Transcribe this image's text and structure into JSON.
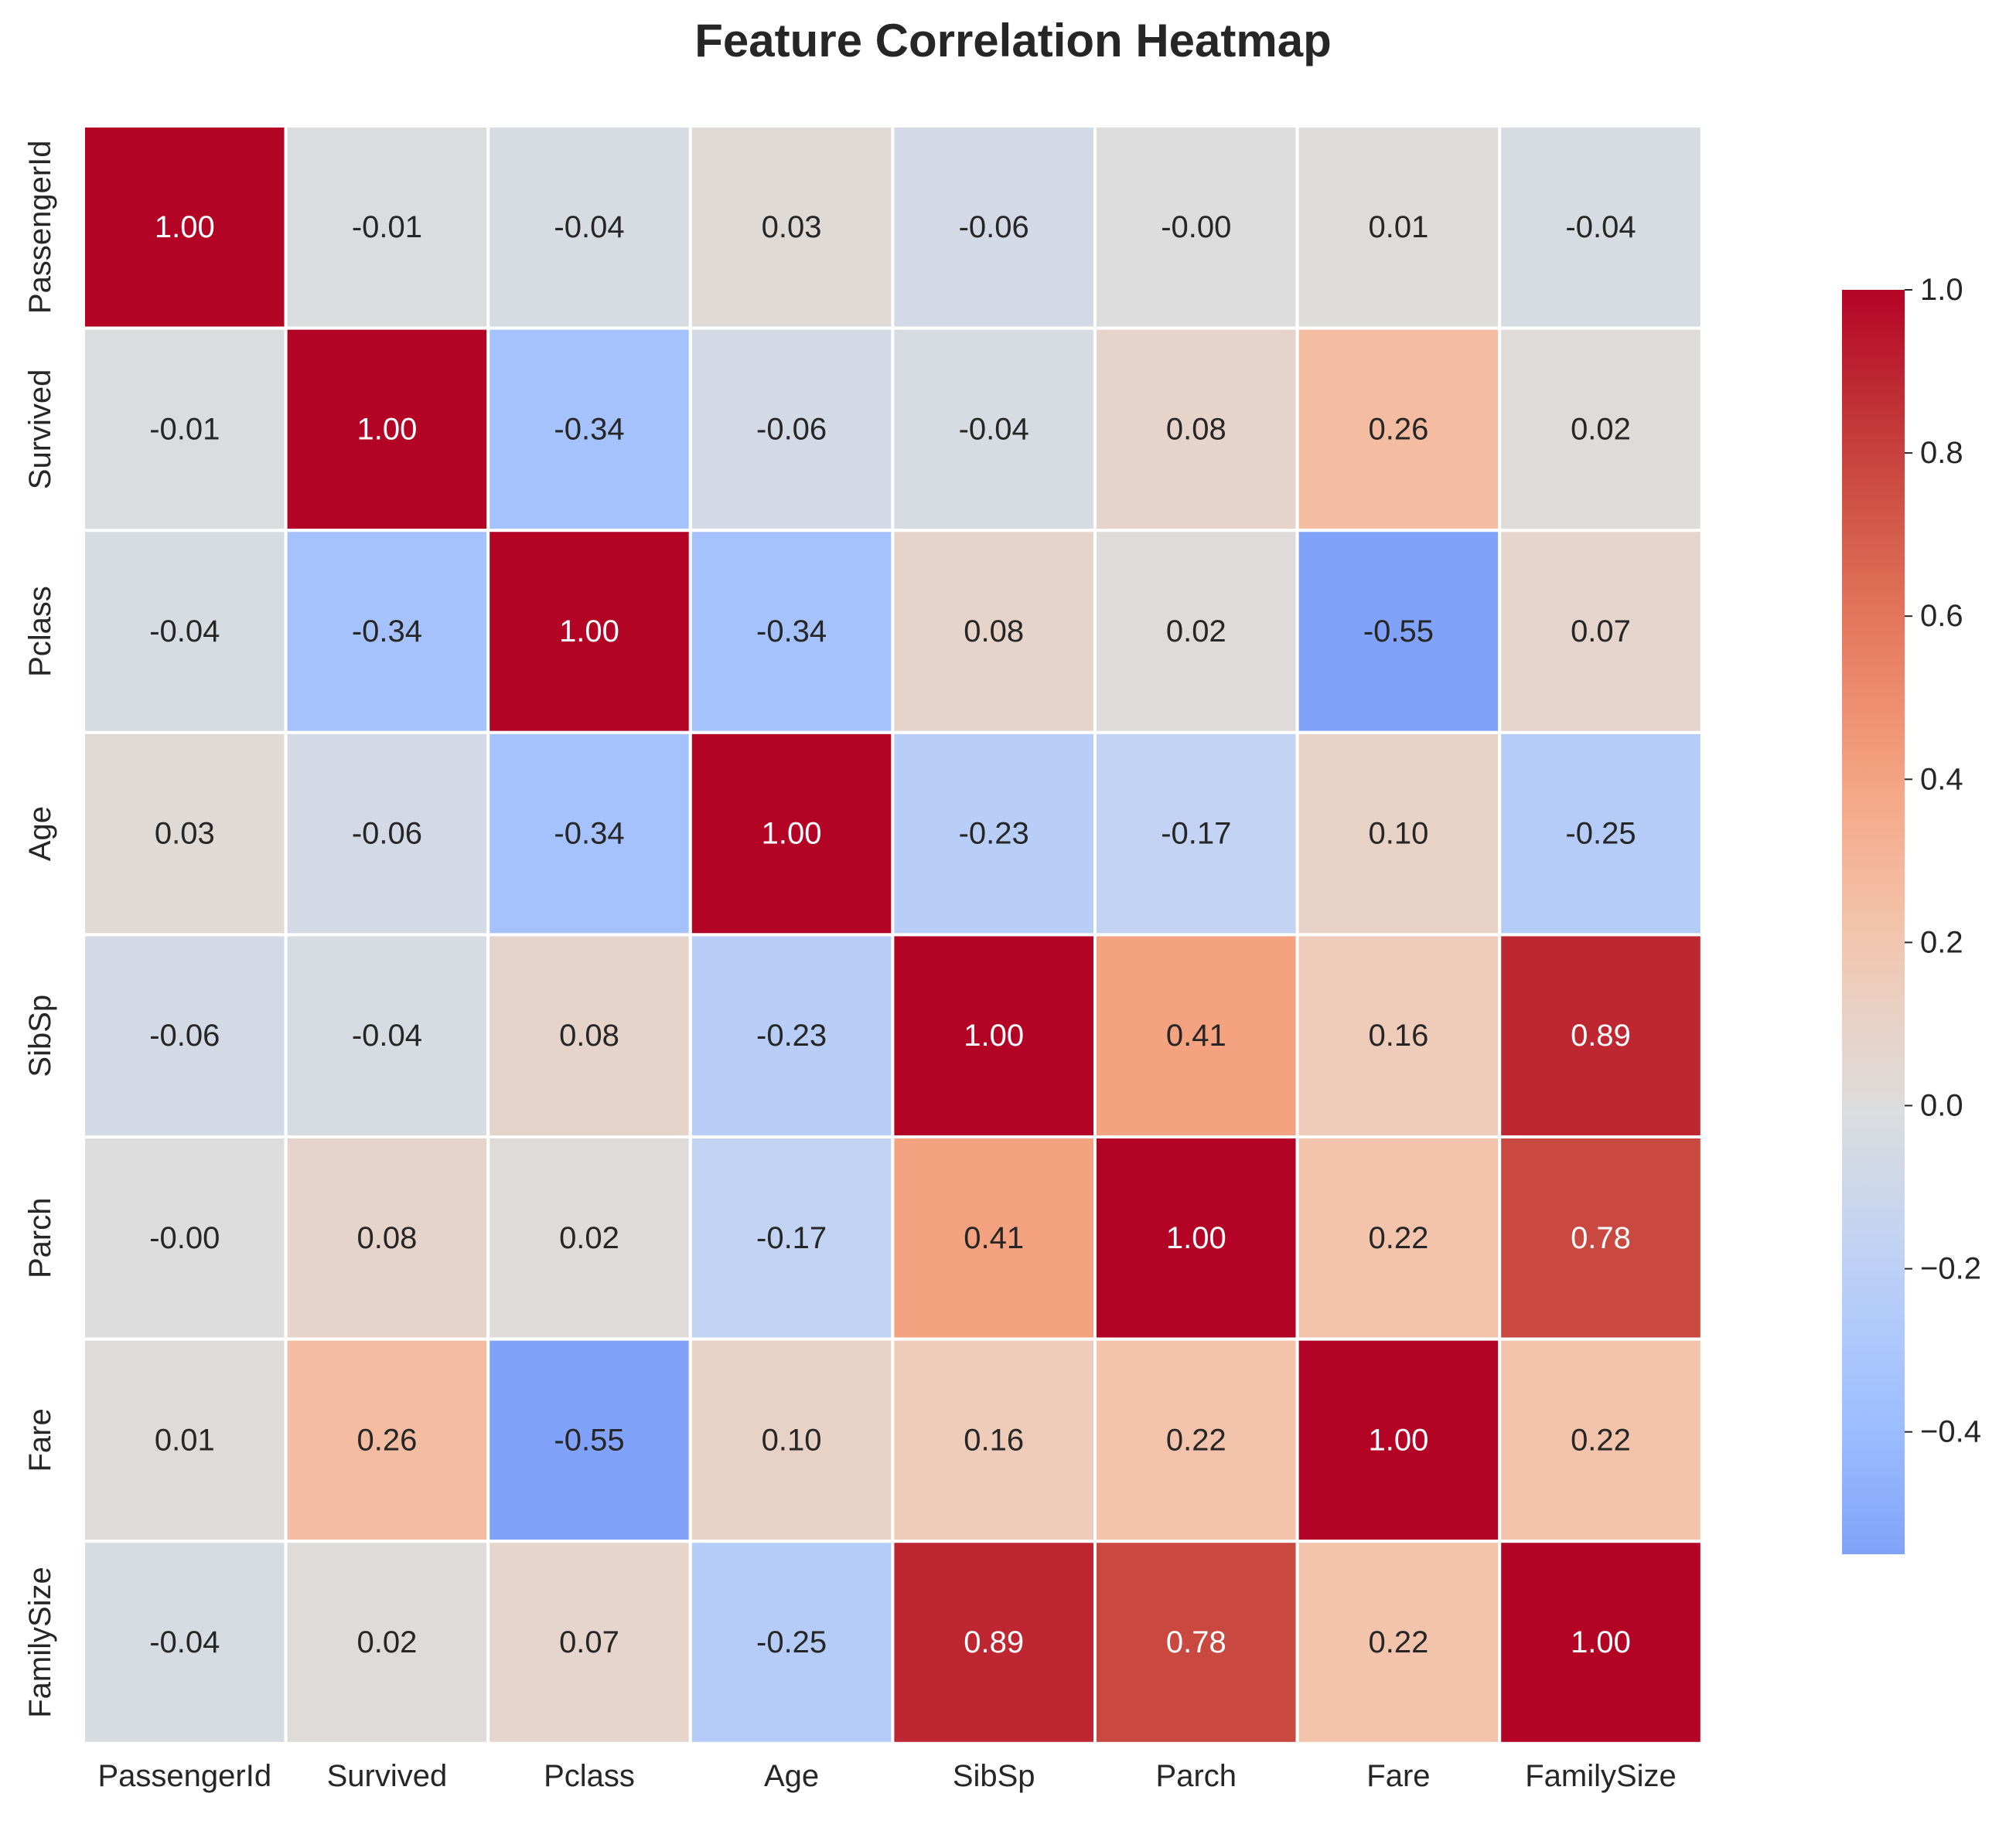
{
  "chart_data": {
    "type": "heatmap",
    "title": "Feature Correlation Heatmap",
    "xlabel": "",
    "ylabel": "",
    "x_labels": [
      "PassengerId",
      "Survived",
      "Pclass",
      "Age",
      "SibSp",
      "Parch",
      "Fare",
      "FamilySize"
    ],
    "y_labels": [
      "PassengerId",
      "Survived",
      "Pclass",
      "Age",
      "SibSp",
      "Parch",
      "Fare",
      "FamilySize"
    ],
    "values": [
      [
        1.0,
        -0.01,
        -0.04,
        0.03,
        -0.06,
        -0.0,
        0.01,
        -0.04
      ],
      [
        -0.01,
        1.0,
        -0.34,
        -0.06,
        -0.04,
        0.08,
        0.26,
        0.02
      ],
      [
        -0.04,
        -0.34,
        1.0,
        -0.34,
        0.08,
        0.02,
        -0.55,
        0.07
      ],
      [
        0.03,
        -0.06,
        -0.34,
        1.0,
        -0.23,
        -0.17,
        0.1,
        -0.25
      ],
      [
        -0.06,
        -0.04,
        0.08,
        -0.23,
        1.0,
        0.41,
        0.16,
        0.89
      ],
      [
        -0.0,
        0.08,
        0.02,
        -0.17,
        0.41,
        1.0,
        0.22,
        0.78
      ],
      [
        0.01,
        0.26,
        -0.55,
        0.1,
        0.16,
        0.22,
        1.0,
        0.22
      ],
      [
        -0.04,
        0.02,
        0.07,
        -0.25,
        0.89,
        0.78,
        0.22,
        1.0
      ]
    ],
    "cell_labels": [
      [
        "1.00",
        "-0.01",
        "-0.04",
        "0.03",
        "-0.06",
        "-0.00",
        "0.01",
        "-0.04"
      ],
      [
        "-0.01",
        "1.00",
        "-0.34",
        "-0.06",
        "-0.04",
        "0.08",
        "0.26",
        "0.02"
      ],
      [
        "-0.04",
        "-0.34",
        "1.00",
        "-0.34",
        "0.08",
        "0.02",
        "-0.55",
        "0.07"
      ],
      [
        "0.03",
        "-0.06",
        "-0.34",
        "1.00",
        "-0.23",
        "-0.17",
        "0.10",
        "-0.25"
      ],
      [
        "-0.06",
        "-0.04",
        "0.08",
        "-0.23",
        "1.00",
        "0.41",
        "0.16",
        "0.89"
      ],
      [
        "-0.00",
        "0.08",
        "0.02",
        "-0.17",
        "0.41",
        "1.00",
        "0.22",
        "0.78"
      ],
      [
        "0.01",
        "0.26",
        "-0.55",
        "0.10",
        "0.16",
        "0.22",
        "1.00",
        "0.22"
      ],
      [
        "-0.04",
        "0.02",
        "0.07",
        "-0.25",
        "0.89",
        "0.78",
        "0.22",
        "1.00"
      ]
    ],
    "colormap": "coolwarm",
    "color_center": 0.0,
    "color_range": [
      -0.55,
      1.0
    ],
    "colorbar_ticks": [
      1.0,
      0.8,
      0.6,
      0.4,
      0.2,
      0.0,
      -0.2,
      -0.4
    ],
    "colorbar_tick_labels": [
      "1.0",
      "0.8",
      "0.6",
      "0.4",
      "0.2",
      "0.0",
      "−0.2",
      "−0.4"
    ],
    "grid": false,
    "cell_border_color": "#ffffff",
    "text_color_dark": "#262626",
    "text_color_light": "#ffffff"
  }
}
